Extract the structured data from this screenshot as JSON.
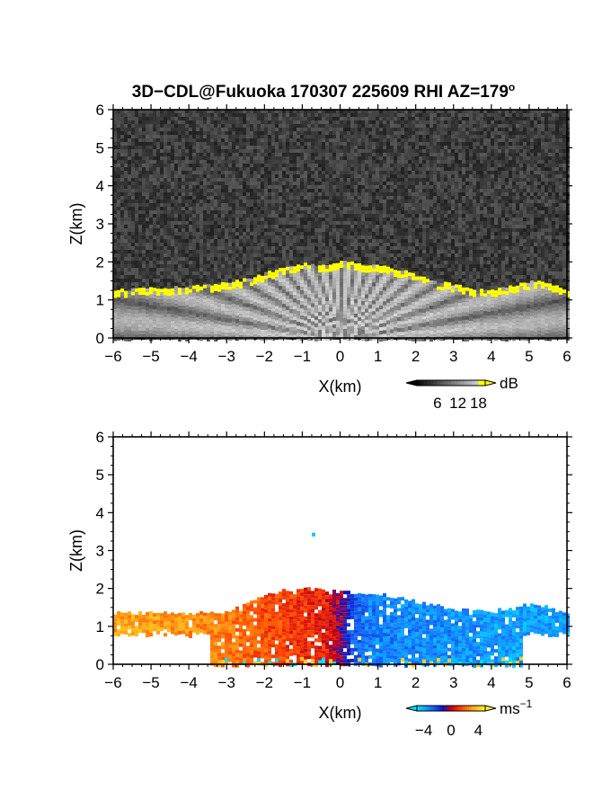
{
  "title": {
    "prefix": "3D−CDL@Fukuoka 170307 225609 RHI AZ=179",
    "superscript": "o"
  },
  "chart_data": [
    {
      "type": "heatmap",
      "field": "reflectivity",
      "xlabel": "X(km)",
      "ylabel": "Z(km)",
      "xlim": [
        -6,
        6
      ],
      "ylim": [
        0,
        6
      ],
      "xticks": [
        "−6",
        "−5",
        "−4",
        "−3",
        "−2",
        "−1",
        "0",
        "1",
        "2",
        "3",
        "4",
        "5",
        "6"
      ],
      "yticks": [
        "0",
        "1",
        "2",
        "3",
        "4",
        "5",
        "6"
      ],
      "colorbar": {
        "unit": "dB",
        "ticks": [
          "6",
          "12",
          "18"
        ],
        "range": [
          0,
          20
        ]
      },
      "echo_top_profile": {
        "x": [
          -6,
          -5,
          -4,
          -3,
          -2.5,
          -2,
          -1.5,
          -1,
          -0.5,
          0,
          0.5,
          1,
          1.5,
          2,
          2.5,
          3,
          3.5,
          4,
          4.5,
          5,
          5.5,
          6
        ],
        "z": [
          1.25,
          1.3,
          1.35,
          1.45,
          1.55,
          1.7,
          1.85,
          1.95,
          1.9,
          2.0,
          1.95,
          1.9,
          1.8,
          1.65,
          1.5,
          1.4,
          1.3,
          1.25,
          1.35,
          1.5,
          1.45,
          1.25
        ]
      },
      "background_noise_level_db": [
        2,
        7
      ],
      "echo_level_db": [
        6,
        20
      ]
    },
    {
      "type": "heatmap",
      "field": "doppler_velocity",
      "xlabel": "X(km)",
      "ylabel": "Z(km)",
      "xlim": [
        -6,
        6
      ],
      "ylim": [
        0,
        6
      ],
      "xticks": [
        "−6",
        "−5",
        "−4",
        "−3",
        "−2",
        "−1",
        "0",
        "1",
        "2",
        "3",
        "4",
        "5",
        "6"
      ],
      "yticks": [
        "0",
        "1",
        "2",
        "3",
        "4",
        "5",
        "6"
      ],
      "colorbar": {
        "unit_base": "ms",
        "unit_exp": "−1",
        "ticks": [
          "−4",
          "0",
          "4"
        ],
        "range": [
          -5,
          5
        ]
      },
      "echo_top_profile": {
        "x": [
          -6,
          -5,
          -4,
          -3,
          -2.5,
          -2,
          -1.5,
          -1,
          -0.5,
          0,
          0.5,
          1,
          1.5,
          2,
          2.5,
          3,
          3.5,
          4,
          4.5,
          5,
          5.5,
          6
        ],
        "z": [
          1.35,
          1.35,
          1.35,
          1.4,
          1.6,
          1.85,
          1.95,
          2.0,
          1.95,
          1.9,
          1.9,
          1.85,
          1.75,
          1.65,
          1.55,
          1.45,
          1.4,
          1.4,
          1.5,
          1.6,
          1.5,
          1.3
        ]
      },
      "velocity_profile": {
        "x": [
          -6,
          -4,
          -3,
          -2,
          -1,
          -0.5,
          0,
          0.3,
          0.6,
          1,
          2,
          3,
          4,
          5,
          6
        ],
        "v": [
          3.2,
          2.8,
          2.4,
          1.6,
          1.0,
          0.8,
          -0.5,
          -2.5,
          -3.0,
          -3.2,
          -3.3,
          -3.4,
          -3.6,
          -3.8,
          -3.5
        ]
      },
      "isolated_point": {
        "x": -0.7,
        "z": 3.42,
        "v": -4.5
      }
    }
  ]
}
